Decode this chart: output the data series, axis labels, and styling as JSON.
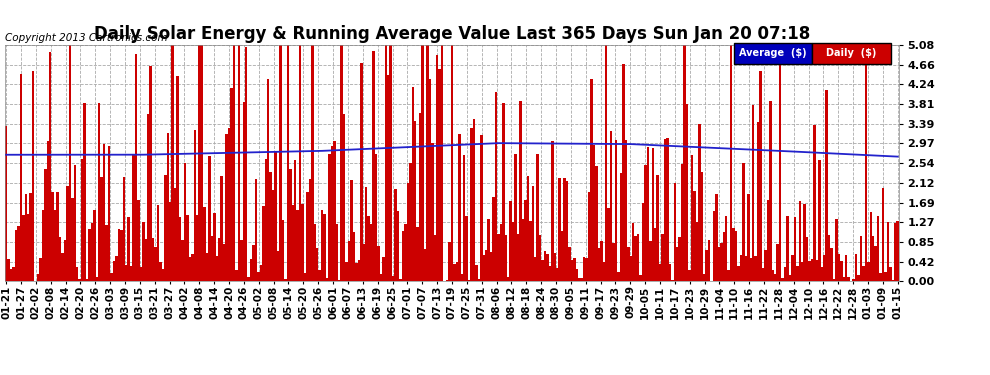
{
  "title": "Daily Solar Energy & Running Average Value Last 365 Days Sun Jan 20 07:18",
  "copyright": "Copyright 2013 Cartronics.com",
  "legend_labels": [
    "Average  ($)",
    "Daily  ($)"
  ],
  "legend_colors": [
    "#0000bb",
    "#cc0000"
  ],
  "bar_color": "#cc0000",
  "avg_line_color": "#2222cc",
  "background_color": "#ffffff",
  "plot_bg_color": "#ffffff",
  "grid_color": "#aaaaaa",
  "ylim": [
    0,
    5.08
  ],
  "yticks": [
    0.0,
    0.42,
    0.85,
    1.27,
    1.69,
    2.12,
    2.54,
    2.97,
    3.39,
    3.81,
    4.24,
    4.66,
    5.08
  ],
  "n_days": 365,
  "title_fontsize": 12,
  "tick_fontsize": 8,
  "copyright_fontsize": 7.5,
  "xtick_labels": [
    "01-21",
    "01-27",
    "02-02",
    "02-08",
    "02-14",
    "02-20",
    "02-26",
    "03-03",
    "03-09",
    "03-15",
    "03-21",
    "03-27",
    "04-02",
    "04-08",
    "04-14",
    "04-20",
    "04-26",
    "05-02",
    "05-08",
    "05-14",
    "05-20",
    "05-26",
    "06-01",
    "06-07",
    "06-13",
    "06-19",
    "06-25",
    "07-01",
    "07-07",
    "07-13",
    "07-19",
    "07-25",
    "07-31",
    "08-06",
    "08-12",
    "08-18",
    "08-24",
    "08-30",
    "09-05",
    "09-11",
    "09-17",
    "09-23",
    "09-29",
    "10-05",
    "10-11",
    "10-17",
    "10-23",
    "10-29",
    "11-04",
    "11-10",
    "11-16",
    "11-22",
    "11-28",
    "12-04",
    "12-10",
    "12-16",
    "12-22",
    "12-28",
    "01-03",
    "01-09",
    "01-15"
  ],
  "avg_x_pts": [
    0.0,
    0.15,
    0.35,
    0.55,
    0.7,
    0.85,
    1.0
  ],
  "avg_y_pts": [
    2.72,
    2.72,
    2.8,
    2.97,
    2.95,
    2.82,
    2.68
  ]
}
